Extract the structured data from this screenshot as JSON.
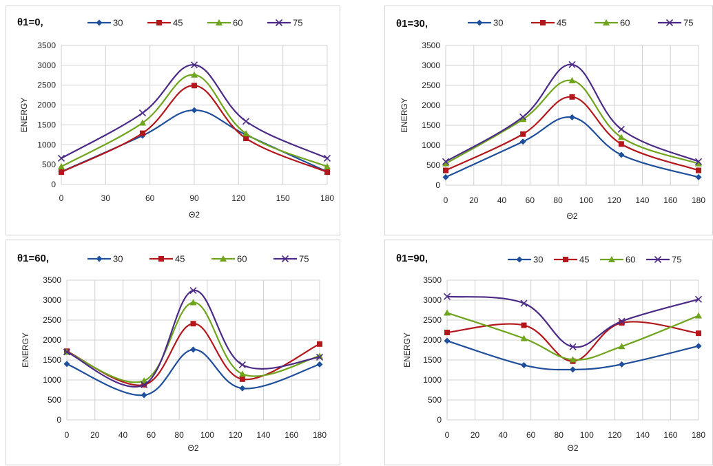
{
  "colors": {
    "30": "#1f4e9a",
    "45": "#b3171b",
    "60": "#6fa51c",
    "75": "#4b2a86"
  },
  "markers": {
    "30": "diamond",
    "45": "square",
    "60": "triangle",
    "75": "x"
  },
  "chart_data": [
    {
      "type": "line",
      "title": "θ1=0,",
      "xlabel": "Θ2",
      "ylabel": "ENERGY",
      "xlim": [
        0,
        180
      ],
      "ylim": [
        0,
        3500
      ],
      "xticks": [
        0,
        30,
        60,
        90,
        120,
        150,
        180
      ],
      "yticks": [
        0,
        500,
        1000,
        1500,
        2000,
        2500,
        3000,
        3500
      ],
      "grid": true,
      "legend": "top",
      "x": [
        0,
        55,
        90,
        125,
        180
      ],
      "series": [
        {
          "name": "30",
          "values": [
            320,
            1230,
            1870,
            1250,
            320
          ]
        },
        {
          "name": "45",
          "values": [
            310,
            1290,
            2490,
            1160,
            310
          ]
        },
        {
          "name": "60",
          "values": [
            450,
            1550,
            2760,
            1280,
            450
          ]
        },
        {
          "name": "75",
          "values": [
            660,
            1800,
            3010,
            1590,
            660
          ]
        }
      ]
    },
    {
      "type": "line",
      "title": "θ1=30,",
      "xlabel": "Θ2",
      "ylabel": "ENERGY",
      "xlim": [
        0,
        180
      ],
      "ylim": [
        0,
        3500
      ],
      "xticks": [
        0,
        20,
        40,
        60,
        80,
        100,
        120,
        140,
        160,
        180
      ],
      "yticks": [
        0,
        500,
        1000,
        1500,
        2000,
        2500,
        3000,
        3500
      ],
      "grid": true,
      "legend": "top",
      "x": [
        0,
        55,
        90,
        125,
        180
      ],
      "series": [
        {
          "name": "30",
          "values": [
            200,
            1090,
            1700,
            760,
            200
          ]
        },
        {
          "name": "45",
          "values": [
            370,
            1280,
            2210,
            1030,
            370
          ]
        },
        {
          "name": "60",
          "values": [
            540,
            1650,
            2620,
            1200,
            540
          ]
        },
        {
          "name": "75",
          "values": [
            590,
            1710,
            3020,
            1400,
            590
          ]
        }
      ]
    },
    {
      "type": "line",
      "title": "θ1=60,",
      "xlabel": "Θ2",
      "ylabel": "ENERGY",
      "xlim": [
        0,
        180
      ],
      "ylim": [
        0,
        3500
      ],
      "xticks": [
        0,
        20,
        40,
        60,
        80,
        100,
        120,
        140,
        160,
        180
      ],
      "yticks": [
        0,
        500,
        1000,
        1500,
        2000,
        2500,
        3000,
        3500
      ],
      "grid": true,
      "legend": "top",
      "x": [
        0,
        55,
        90,
        125,
        180
      ],
      "series": [
        {
          "name": "30",
          "values": [
            1400,
            620,
            1760,
            790,
            1390
          ]
        },
        {
          "name": "45",
          "values": [
            1720,
            880,
            2410,
            1020,
            1900
          ]
        },
        {
          "name": "60",
          "values": [
            1700,
            980,
            2940,
            1150,
            1600
          ]
        },
        {
          "name": "75",
          "values": [
            1700,
            880,
            3240,
            1380,
            1570
          ]
        }
      ]
    },
    {
      "type": "line",
      "title": "θ1=90,",
      "xlabel": "Θ2",
      "ylabel": "ENERGY",
      "xlim": [
        0,
        180
      ],
      "ylim": [
        0,
        3500
      ],
      "xticks": [
        0,
        20,
        40,
        60,
        80,
        100,
        120,
        140,
        160,
        180
      ],
      "yticks": [
        0,
        500,
        1000,
        1500,
        2000,
        2500,
        3000,
        3500
      ],
      "grid": true,
      "legend": "top",
      "x": [
        0,
        55,
        90,
        125,
        180
      ],
      "series": [
        {
          "name": "30",
          "values": [
            1980,
            1370,
            1260,
            1390,
            1850
          ]
        },
        {
          "name": "45",
          "values": [
            2190,
            2370,
            1470,
            2430,
            2170
          ]
        },
        {
          "name": "60",
          "values": [
            2680,
            2040,
            1510,
            1840,
            2610
          ]
        },
        {
          "name": "75",
          "values": [
            3090,
            2920,
            1830,
            2470,
            3020
          ]
        }
      ]
    }
  ]
}
